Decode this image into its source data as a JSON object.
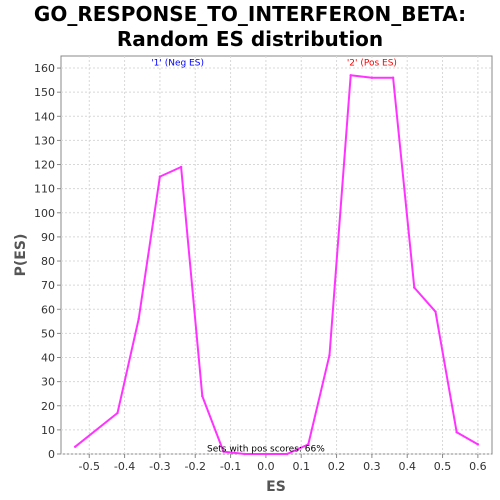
{
  "chart_data": {
    "type": "line",
    "title": [
      "GO_RESPONSE_TO_INTERFERON_BETA:",
      "Random ES distribution"
    ],
    "xlabel": "ES",
    "ylabel": "P(ES)",
    "xlim": [
      -0.58,
      0.64
    ],
    "ylim": [
      0,
      165
    ],
    "x_ticks": [
      -0.5,
      -0.4,
      -0.3,
      -0.2,
      -0.1,
      0.0,
      0.1,
      0.2,
      0.3,
      0.4,
      0.5,
      0.6
    ],
    "x_tick_labels": [
      "-0.5",
      "-0.4",
      "-0.3",
      "-0.2",
      "-0.1",
      "0.0",
      "0.1",
      "0.2",
      "0.3",
      "0.4",
      "0.5",
      "0.6"
    ],
    "y_ticks": [
      0,
      10,
      20,
      30,
      40,
      50,
      60,
      70,
      80,
      90,
      100,
      110,
      120,
      130,
      140,
      150,
      160
    ],
    "y_tick_labels": [
      "0",
      "10",
      "20",
      "30",
      "40",
      "50",
      "60",
      "70",
      "80",
      "90",
      "100",
      "110",
      "120",
      "130",
      "140",
      "150",
      "160"
    ],
    "grid": true,
    "series": [
      {
        "color": "#ff33ff",
        "points": [
          [
            -0.54,
            3
          ],
          [
            -0.42,
            17
          ],
          [
            -0.36,
            56
          ],
          [
            -0.3,
            115
          ],
          [
            -0.24,
            119
          ],
          [
            -0.18,
            24
          ],
          [
            -0.12,
            1
          ],
          [
            -0.06,
            0
          ],
          [
            0.0,
            0
          ],
          [
            0.06,
            0
          ],
          [
            0.12,
            4
          ],
          [
            0.18,
            41
          ],
          [
            0.24,
            157
          ],
          [
            0.3,
            156
          ],
          [
            0.36,
            156
          ],
          [
            0.42,
            69
          ],
          [
            0.48,
            59
          ],
          [
            0.54,
            9
          ],
          [
            0.6,
            4
          ]
        ]
      }
    ],
    "annotations": [
      {
        "text": "'1' (Neg ES)",
        "x": -0.25,
        "y": 161,
        "color": "#0000ff"
      },
      {
        "text": "'2' (Pos ES)",
        "x": 0.3,
        "y": 161,
        "color": "#ff0000"
      },
      {
        "text": "Sets with pos scores: 66%",
        "x": 0.0,
        "y": 1,
        "color": "#000000"
      }
    ]
  }
}
